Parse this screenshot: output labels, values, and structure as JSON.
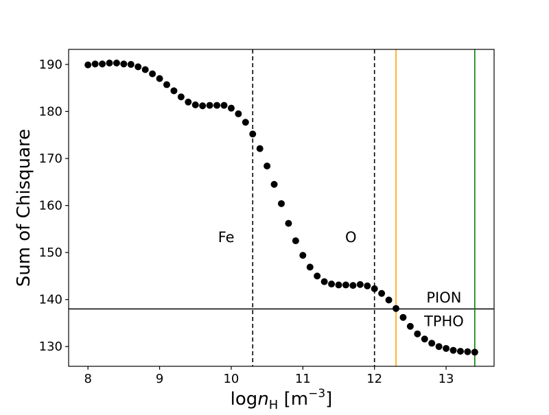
{
  "chart_data": {
    "type": "scatter",
    "title": "",
    "xlabel": {
      "prefix": "log",
      "var": "n",
      "sub": "H",
      "units": " [m",
      "exp": "−3",
      "close": "]"
    },
    "ylabel": "Sum of Chisquare",
    "xlim": [
      7.73,
      13.67
    ],
    "ylim": [
      125.8,
      193.2
    ],
    "xticks": [
      8,
      9,
      10,
      11,
      12,
      13
    ],
    "yticks": [
      130,
      140,
      150,
      160,
      170,
      180,
      190
    ],
    "grid": false,
    "series": [
      {
        "name": "chi-square sum",
        "color": "#000000",
        "marker": "circle",
        "x": [
          8.0,
          8.1,
          8.2,
          8.3,
          8.4,
          8.5,
          8.6,
          8.7,
          8.8,
          8.9,
          9.0,
          9.1,
          9.2,
          9.3,
          9.4,
          9.5,
          9.6,
          9.7,
          9.8,
          9.9,
          10.0,
          10.1,
          10.2,
          10.3,
          10.4,
          10.5,
          10.6,
          10.7,
          10.8,
          10.9,
          11.0,
          11.1,
          11.2,
          11.3,
          11.4,
          11.5,
          11.6,
          11.7,
          11.8,
          11.9,
          12.0,
          12.1,
          12.2,
          12.3,
          12.4,
          12.5,
          12.6,
          12.7,
          12.8,
          12.9,
          13.0,
          13.1,
          13.2,
          13.3,
          13.4
        ],
        "y": [
          189.9,
          190.1,
          190.1,
          190.3,
          190.3,
          190.1,
          190.0,
          189.5,
          188.9,
          188.0,
          187.0,
          185.7,
          184.4,
          183.1,
          182.0,
          181.4,
          181.2,
          181.3,
          181.3,
          181.3,
          180.7,
          179.5,
          177.7,
          175.2,
          172.1,
          168.4,
          164.5,
          160.4,
          156.2,
          152.5,
          149.4,
          146.9,
          145.0,
          143.8,
          143.3,
          143.1,
          143.1,
          143.0,
          143.2,
          142.9,
          142.3,
          141.3,
          139.9,
          138.1,
          136.2,
          134.3,
          132.7,
          131.6,
          130.7,
          130.0,
          129.6,
          129.2,
          129.0,
          128.9,
          128.8
        ]
      }
    ],
    "hlines": [
      {
        "name": "threshold",
        "y": 138.0,
        "color": "#000000",
        "style": "solid"
      }
    ],
    "vlines": [
      {
        "name": "fe",
        "x": 10.3,
        "color": "#000000",
        "style": "dashed"
      },
      {
        "name": "o",
        "x": 12.0,
        "color": "#000000",
        "style": "dashed"
      },
      {
        "name": "pion",
        "x": 12.3,
        "color": "#ffa500",
        "style": "solid"
      },
      {
        "name": "tpho",
        "x": 13.4,
        "color": "#008000",
        "style": "solid"
      }
    ],
    "annotations": [
      {
        "name": "fe",
        "text": "Fe",
        "x": 9.93,
        "y": 152.2
      },
      {
        "name": "o",
        "text": "O",
        "x": 11.67,
        "y": 152.2
      },
      {
        "name": "pion",
        "text": "PION",
        "x": 12.97,
        "y": 139.4
      },
      {
        "name": "tpho",
        "text": "TPHO",
        "x": 12.97,
        "y": 134.3
      }
    ]
  }
}
